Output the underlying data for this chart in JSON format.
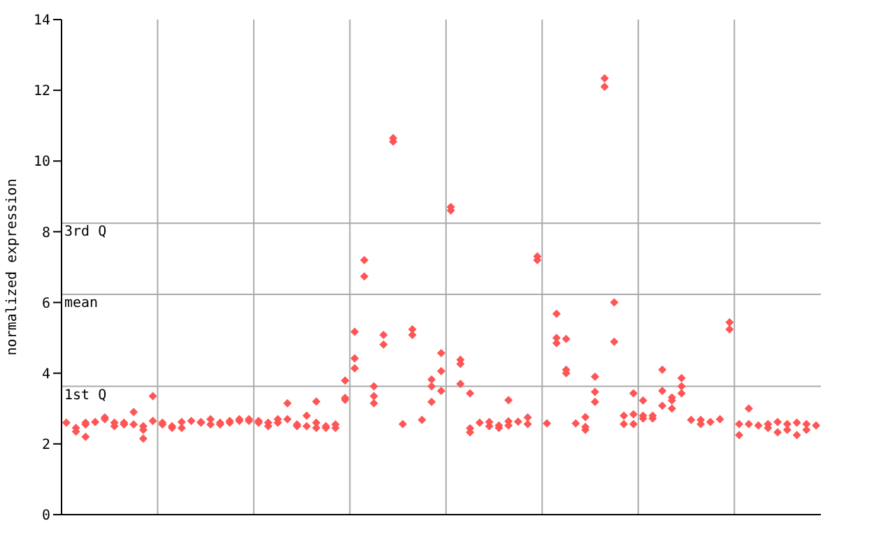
{
  "chart_data": {
    "type": "scatter",
    "ylabel": "normalized expression",
    "categories": [
      null,
      null,
      null,
      null,
      null,
      null,
      null,
      null,
      null,
      null,
      null,
      null,
      null,
      null,
      null,
      null,
      null,
      null,
      null,
      null,
      null,
      null,
      null,
      null,
      null,
      null,
      null,
      null,
      null,
      null,
      null,
      null,
      null,
      null,
      null,
      null,
      null,
      null,
      null,
      null,
      null,
      null,
      null,
      null,
      null,
      null,
      null,
      null,
      null,
      null,
      null,
      null,
      null,
      null,
      null,
      null,
      null,
      null,
      null,
      null,
      null,
      null,
      null,
      null,
      null,
      null,
      null,
      null,
      null,
      null,
      null,
      null,
      null,
      null,
      null,
      null,
      null,
      null,
      null
    ],
    "ylim": [
      0,
      14
    ],
    "yticks": [
      0,
      2,
      4,
      6,
      8,
      10,
      12,
      14
    ],
    "grid": "x",
    "marker": "diamond",
    "ref_lines": [
      {
        "axis": "y",
        "value": 3.63,
        "label": "1st Q",
        "color": "#aaaaaa"
      },
      {
        "axis": "y",
        "value": 6.23,
        "label": "mean",
        "color": "#aaaaaa"
      },
      {
        "axis": "y",
        "value": 8.24,
        "label": "3rd Q",
        "color": "#aaaaaa"
      }
    ],
    "series": [
      {
        "color": "#ff5555",
        "values": [
          2.6,
          2.45,
          2.6,
          2.62,
          2.75,
          2.6,
          2.6,
          2.55,
          2.5,
          2.65,
          2.6,
          2.5,
          2.62,
          2.65,
          2.6,
          2.7,
          2.6,
          2.65,
          2.7,
          2.7,
          2.65,
          2.6,
          2.7,
          2.7,
          2.5,
          2.5,
          2.6,
          2.5,
          2.55,
          3.79,
          5.17,
          7.2,
          3.63,
          5.08,
          10.65,
          2.56,
          5.24,
          2.68,
          3.82,
          4.57,
          8.7,
          4.38,
          3.43,
          2.6,
          2.62,
          2.52,
          3.24,
          2.63,
          2.75,
          7.3,
          2.58,
          5.68,
          4.97,
          2.58,
          2.76,
          3.9,
          12.34,
          6.0,
          2.8,
          3.43,
          3.23,
          2.8,
          4.1,
          3.31,
          3.86,
          2.68,
          2.68,
          2.62,
          2.7,
          5.44,
          2.56,
          3.0,
          2.52,
          2.56,
          2.62,
          2.56,
          2.6,
          2.56,
          2.52
        ]
      },
      {
        "color": "#ff5555",
        "values": [
          null,
          2.35,
          2.55,
          null,
          2.7,
          2.5,
          2.55,
          2.9,
          2.4,
          3.35,
          2.55,
          2.45,
          2.45,
          null,
          2.62,
          2.55,
          2.55,
          2.6,
          2.65,
          2.65,
          2.6,
          2.5,
          2.6,
          3.15,
          2.55,
          2.8,
          2.45,
          2.45,
          2.45,
          3.3,
          4.42,
          6.74,
          3.35,
          4.81,
          10.55,
          null,
          5.08,
          null,
          3.63,
          4.06,
          8.6,
          4.26,
          2.44,
          null,
          2.5,
          2.45,
          2.64,
          null,
          2.56,
          7.2,
          null,
          5.0,
          4.1,
          null,
          2.48,
          3.47,
          12.1,
          4.89,
          2.56,
          2.84,
          2.8,
          2.72,
          3.5,
          3.23,
          3.63,
          null,
          2.56,
          null,
          null,
          5.24,
          2.25,
          2.56,
          null,
          2.45,
          2.33,
          2.4,
          2.25,
          2.4,
          null
        ]
      },
      {
        "color": "#ff5555",
        "values": [
          null,
          null,
          2.2,
          null,
          null,
          null,
          null,
          null,
          2.15,
          null,
          null,
          null,
          null,
          null,
          null,
          null,
          null,
          null,
          null,
          null,
          null,
          null,
          null,
          null,
          null,
          null,
          3.2,
          null,
          null,
          3.25,
          4.14,
          null,
          3.15,
          null,
          null,
          null,
          null,
          null,
          3.19,
          3.5,
          null,
          3.7,
          2.33,
          null,
          null,
          null,
          2.52,
          null,
          null,
          null,
          null,
          4.85,
          4.0,
          null,
          2.4,
          3.19,
          null,
          null,
          null,
          2.56,
          2.72,
          null,
          3.08,
          3.0,
          3.43,
          null,
          null,
          null,
          null,
          null,
          null,
          null,
          null,
          null,
          null,
          null,
          null,
          null,
          null
        ]
      }
    ]
  }
}
